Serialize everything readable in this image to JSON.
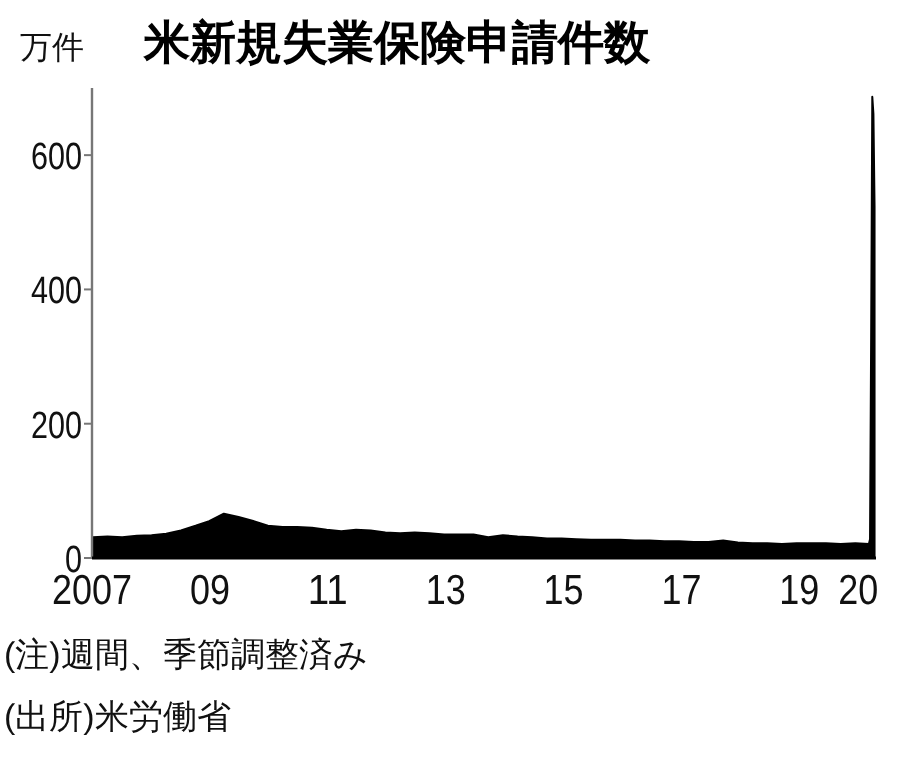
{
  "chart_data": {
    "type": "area",
    "title": "米新規失業保険申請件数",
    "ylabel": "万件",
    "annotations": [
      "(注)週間、季節調整済み",
      "(出所)米労働省"
    ],
    "color": "#000000",
    "x": [
      "2007-01-06",
      "2007-04-07",
      "2007-07-07",
      "2007-10-06",
      "2008-01-05",
      "2008-04-05",
      "2008-07-05",
      "2008-10-04",
      "2008-12-27",
      "2009-03-28",
      "2009-06-27",
      "2009-09-26",
      "2009-12-26",
      "2010-03-27",
      "2010-06-26",
      "2010-09-25",
      "2010-12-25",
      "2011-03-26",
      "2011-06-25",
      "2011-09-24",
      "2011-12-24",
      "2012-03-24",
      "2012-06-23",
      "2012-09-22",
      "2012-12-22",
      "2013-03-23",
      "2013-06-22",
      "2013-09-21",
      "2013-12-21",
      "2014-03-22",
      "2014-06-21",
      "2014-09-20",
      "2014-12-20",
      "2015-03-21",
      "2015-06-20",
      "2015-09-19",
      "2015-12-19",
      "2016-03-19",
      "2016-06-18",
      "2016-09-17",
      "2016-12-17",
      "2017-03-18",
      "2017-06-17",
      "2017-09-16",
      "2017-12-16",
      "2018-03-17",
      "2018-06-16",
      "2018-09-15",
      "2018-12-15",
      "2019-03-16",
      "2019-06-15",
      "2019-09-14",
      "2019-12-14",
      "2020-03-07",
      "2020-03-14",
      "2020-03-21",
      "2020-03-28",
      "2020-04-04",
      "2020-04-11"
    ],
    "values": [
      31,
      32,
      31,
      33,
      34,
      36,
      41,
      48,
      55,
      66,
      61,
      55,
      48,
      46,
      46,
      45,
      42,
      40,
      42,
      41,
      38,
      37,
      38,
      37,
      35,
      35,
      35,
      31,
      34,
      32,
      31,
      29,
      29,
      28,
      27,
      27,
      27,
      26,
      26,
      25,
      25,
      24,
      24,
      26,
      23,
      22,
      22,
      21,
      22,
      22,
      22,
      21,
      22,
      21,
      28,
      331,
      687,
      661,
      524
    ],
    "xlim": [
      "2007-01-01",
      "2020-04-20"
    ],
    "xticks": [
      {
        "value": "2007-01-01",
        "label": "2007"
      },
      {
        "value": "2009-01-01",
        "label": "09"
      },
      {
        "value": "2011-01-01",
        "label": "11"
      },
      {
        "value": "2013-01-01",
        "label": "13"
      },
      {
        "value": "2015-01-01",
        "label": "15"
      },
      {
        "value": "2017-01-01",
        "label": "17"
      },
      {
        "value": "2019-01-01",
        "label": "19"
      },
      {
        "value": "2020-01-01",
        "label": "20"
      }
    ],
    "ylim": [
      0,
      700
    ],
    "yticks": [
      0,
      200,
      400,
      600
    ]
  }
}
